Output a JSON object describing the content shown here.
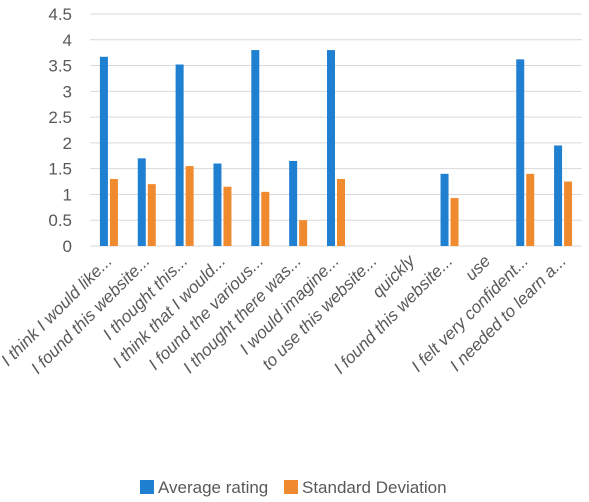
{
  "chart_data": {
    "type": "bar",
    "categories": [
      "I think I would like...",
      "I found this website...",
      "I thought this...",
      "I think that I would...",
      "I found the various...",
      "I thought there was...",
      "I would imagine...",
      "to use this website...",
      "quickly",
      "I found this website...",
      "use",
      "I felt very confident...",
      "I needed to learn a..."
    ],
    "series": [
      {
        "name": "Average rating",
        "color": "#1f7fd1",
        "values": [
          3.67,
          1.7,
          3.52,
          1.6,
          3.8,
          1.65,
          3.8,
          null,
          null,
          1.4,
          null,
          3.62,
          1.95
        ]
      },
      {
        "name": "Standard Deviation",
        "color": "#f08a2e",
        "values": [
          1.3,
          1.2,
          1.55,
          1.15,
          1.05,
          0.5,
          1.3,
          null,
          null,
          0.93,
          null,
          1.4,
          1.25
        ]
      }
    ],
    "ylim": [
      0,
      4.5
    ],
    "yticks": [
      "0",
      "0.5",
      "1",
      "1.5",
      "2",
      "2.5",
      "3",
      "3.5",
      "4",
      "4.5"
    ],
    "grid": true,
    "legend_position": "bottom",
    "title": "",
    "xlabel": "",
    "ylabel": ""
  }
}
